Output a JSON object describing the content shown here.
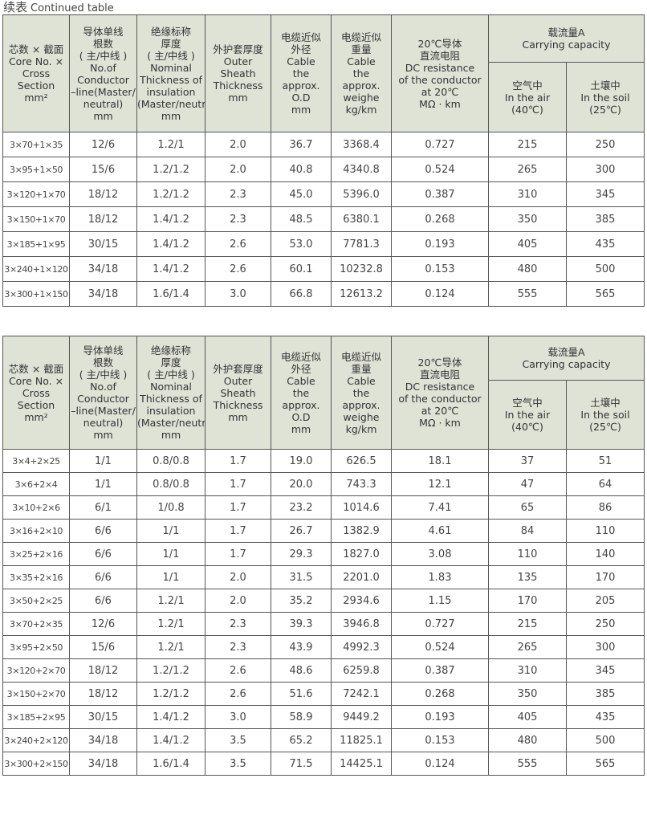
{
  "title": {
    "cn": "续表",
    "en": "Continued table"
  },
  "header": {
    "core": "芯数 × 截面\nCore No. ×\nCross\nSection\nmm²",
    "conductor": "导体单线\n根数\n( 主/中线 )\nNo.of\nConductor\n–line(Master/\nneutral)\nmm",
    "insulation": "绝缘标称\n厚度\n( 主/中线 )\nNominal\nThickness of\ninsulation\n(Master/neutral)\nmm",
    "sheath": "外护套厚度\nOuter\nSheath\nThickness\nmm",
    "od": "电缆近似\n外径\nCable\nthe\napprox.\nO.D\nmm",
    "weight": "电缆近似\n重量\nCable\nthe\napprox.\nweighe\nkg/km",
    "resistance": "20℃导体\n直流电阻\nDC resistance\nof the conductor\nat 20℃\nMΩ · km",
    "capacity": "载流量A\nCarrying capacity",
    "air": "空气中\nIn the air\n(40℃)",
    "soil": "土壤中\nIn the soil\n(25℃)"
  },
  "tables": [
    {
      "rows": [
        [
          "3×70+1×35",
          "12/6",
          "1.2/1",
          "2.0",
          "36.7",
          "3368.4",
          "0.727",
          "215",
          "250"
        ],
        [
          "3×95+1×50",
          "15/6",
          "1.2/1.2",
          "2.0",
          "40.8",
          "4340.8",
          "0.524",
          "265",
          "300"
        ],
        [
          "3×120+1×70",
          "18/12",
          "1.2/1.2",
          "2.3",
          "45.0",
          "5396.0",
          "0.387",
          "310",
          "345"
        ],
        [
          "3×150+1×70",
          "18/12",
          "1.4/1.2",
          "2.3",
          "48.5",
          "6380.1",
          "0.268",
          "350",
          "385"
        ],
        [
          "3×185+1×95",
          "30/15",
          "1.4/1.2",
          "2.6",
          "53.0",
          "7781.3",
          "0.193",
          "405",
          "435"
        ],
        [
          "3×240+1×120",
          "34/18",
          "1.4/1.2",
          "2.6",
          "60.1",
          "10232.8",
          "0.153",
          "480",
          "500"
        ],
        [
          "3×300+1×150",
          "34/18",
          "1.6/1.4",
          "3.0",
          "66.8",
          "12613.2",
          "0.124",
          "555",
          "565"
        ]
      ]
    },
    {
      "rows": [
        [
          "3×4+2×25",
          "1/1",
          "0.8/0.8",
          "1.7",
          "19.0",
          "626.5",
          "18.1",
          "37",
          "51"
        ],
        [
          "3×6+2×4",
          "1/1",
          "0.8/0.8",
          "1.7",
          "20.0",
          "743.3",
          "12.1",
          "47",
          "64"
        ],
        [
          "3×10+2×6",
          "6/1",
          "1/0.8",
          "1.7",
          "23.2",
          "1014.6",
          "7.41",
          "65",
          "86"
        ],
        [
          "3×16+2×10",
          "6/6",
          "1/1",
          "1.7",
          "26.7",
          "1382.9",
          "4.61",
          "84",
          "110"
        ],
        [
          "3×25+2×16",
          "6/6",
          "1/1",
          "1.7",
          "29.3",
          "1827.0",
          "3.08",
          "110",
          "140"
        ],
        [
          "3×35+2×16",
          "6/6",
          "1/1",
          "2.0",
          "31.5",
          "2201.0",
          "1.83",
          "135",
          "170"
        ],
        [
          "3×50+2×25",
          "6/6",
          "1.2/1",
          "2.0",
          "35.2",
          "2934.6",
          "1.15",
          "170",
          "205"
        ],
        [
          "3×70+2×35",
          "12/6",
          "1.2/1",
          "2.3",
          "39.3",
          "3946.8",
          "0.727",
          "215",
          "250"
        ],
        [
          "3×95+2×50",
          "15/6",
          "1.2/1",
          "2.3",
          "43.9",
          "4992.3",
          "0.524",
          "265",
          "300"
        ],
        [
          "3×120+2×70",
          "18/12",
          "1.2/1.2",
          "2.6",
          "48.6",
          "6259.8",
          "0.387",
          "310",
          "345"
        ],
        [
          "3×150+2×70",
          "18/12",
          "1.2/1.2",
          "2.6",
          "51.6",
          "7242.1",
          "0.268",
          "350",
          "385"
        ],
        [
          "3×185+2×95",
          "30/15",
          "1.4/1.2",
          "3.0",
          "58.9",
          "9449.2",
          "0.193",
          "405",
          "435"
        ],
        [
          "3×240+2×120",
          "34/18",
          "1.4/1.2",
          "3.5",
          "65.2",
          "11825.1",
          "0.153",
          "480",
          "500"
        ],
        [
          "3×300+2×150",
          "34/18",
          "1.6/1.4",
          "3.5",
          "71.5",
          "14425.1",
          "0.124",
          "555",
          "565"
        ]
      ]
    }
  ],
  "colors": {
    "header_bg": "#dfe3d6",
    "border": "#555555"
  }
}
